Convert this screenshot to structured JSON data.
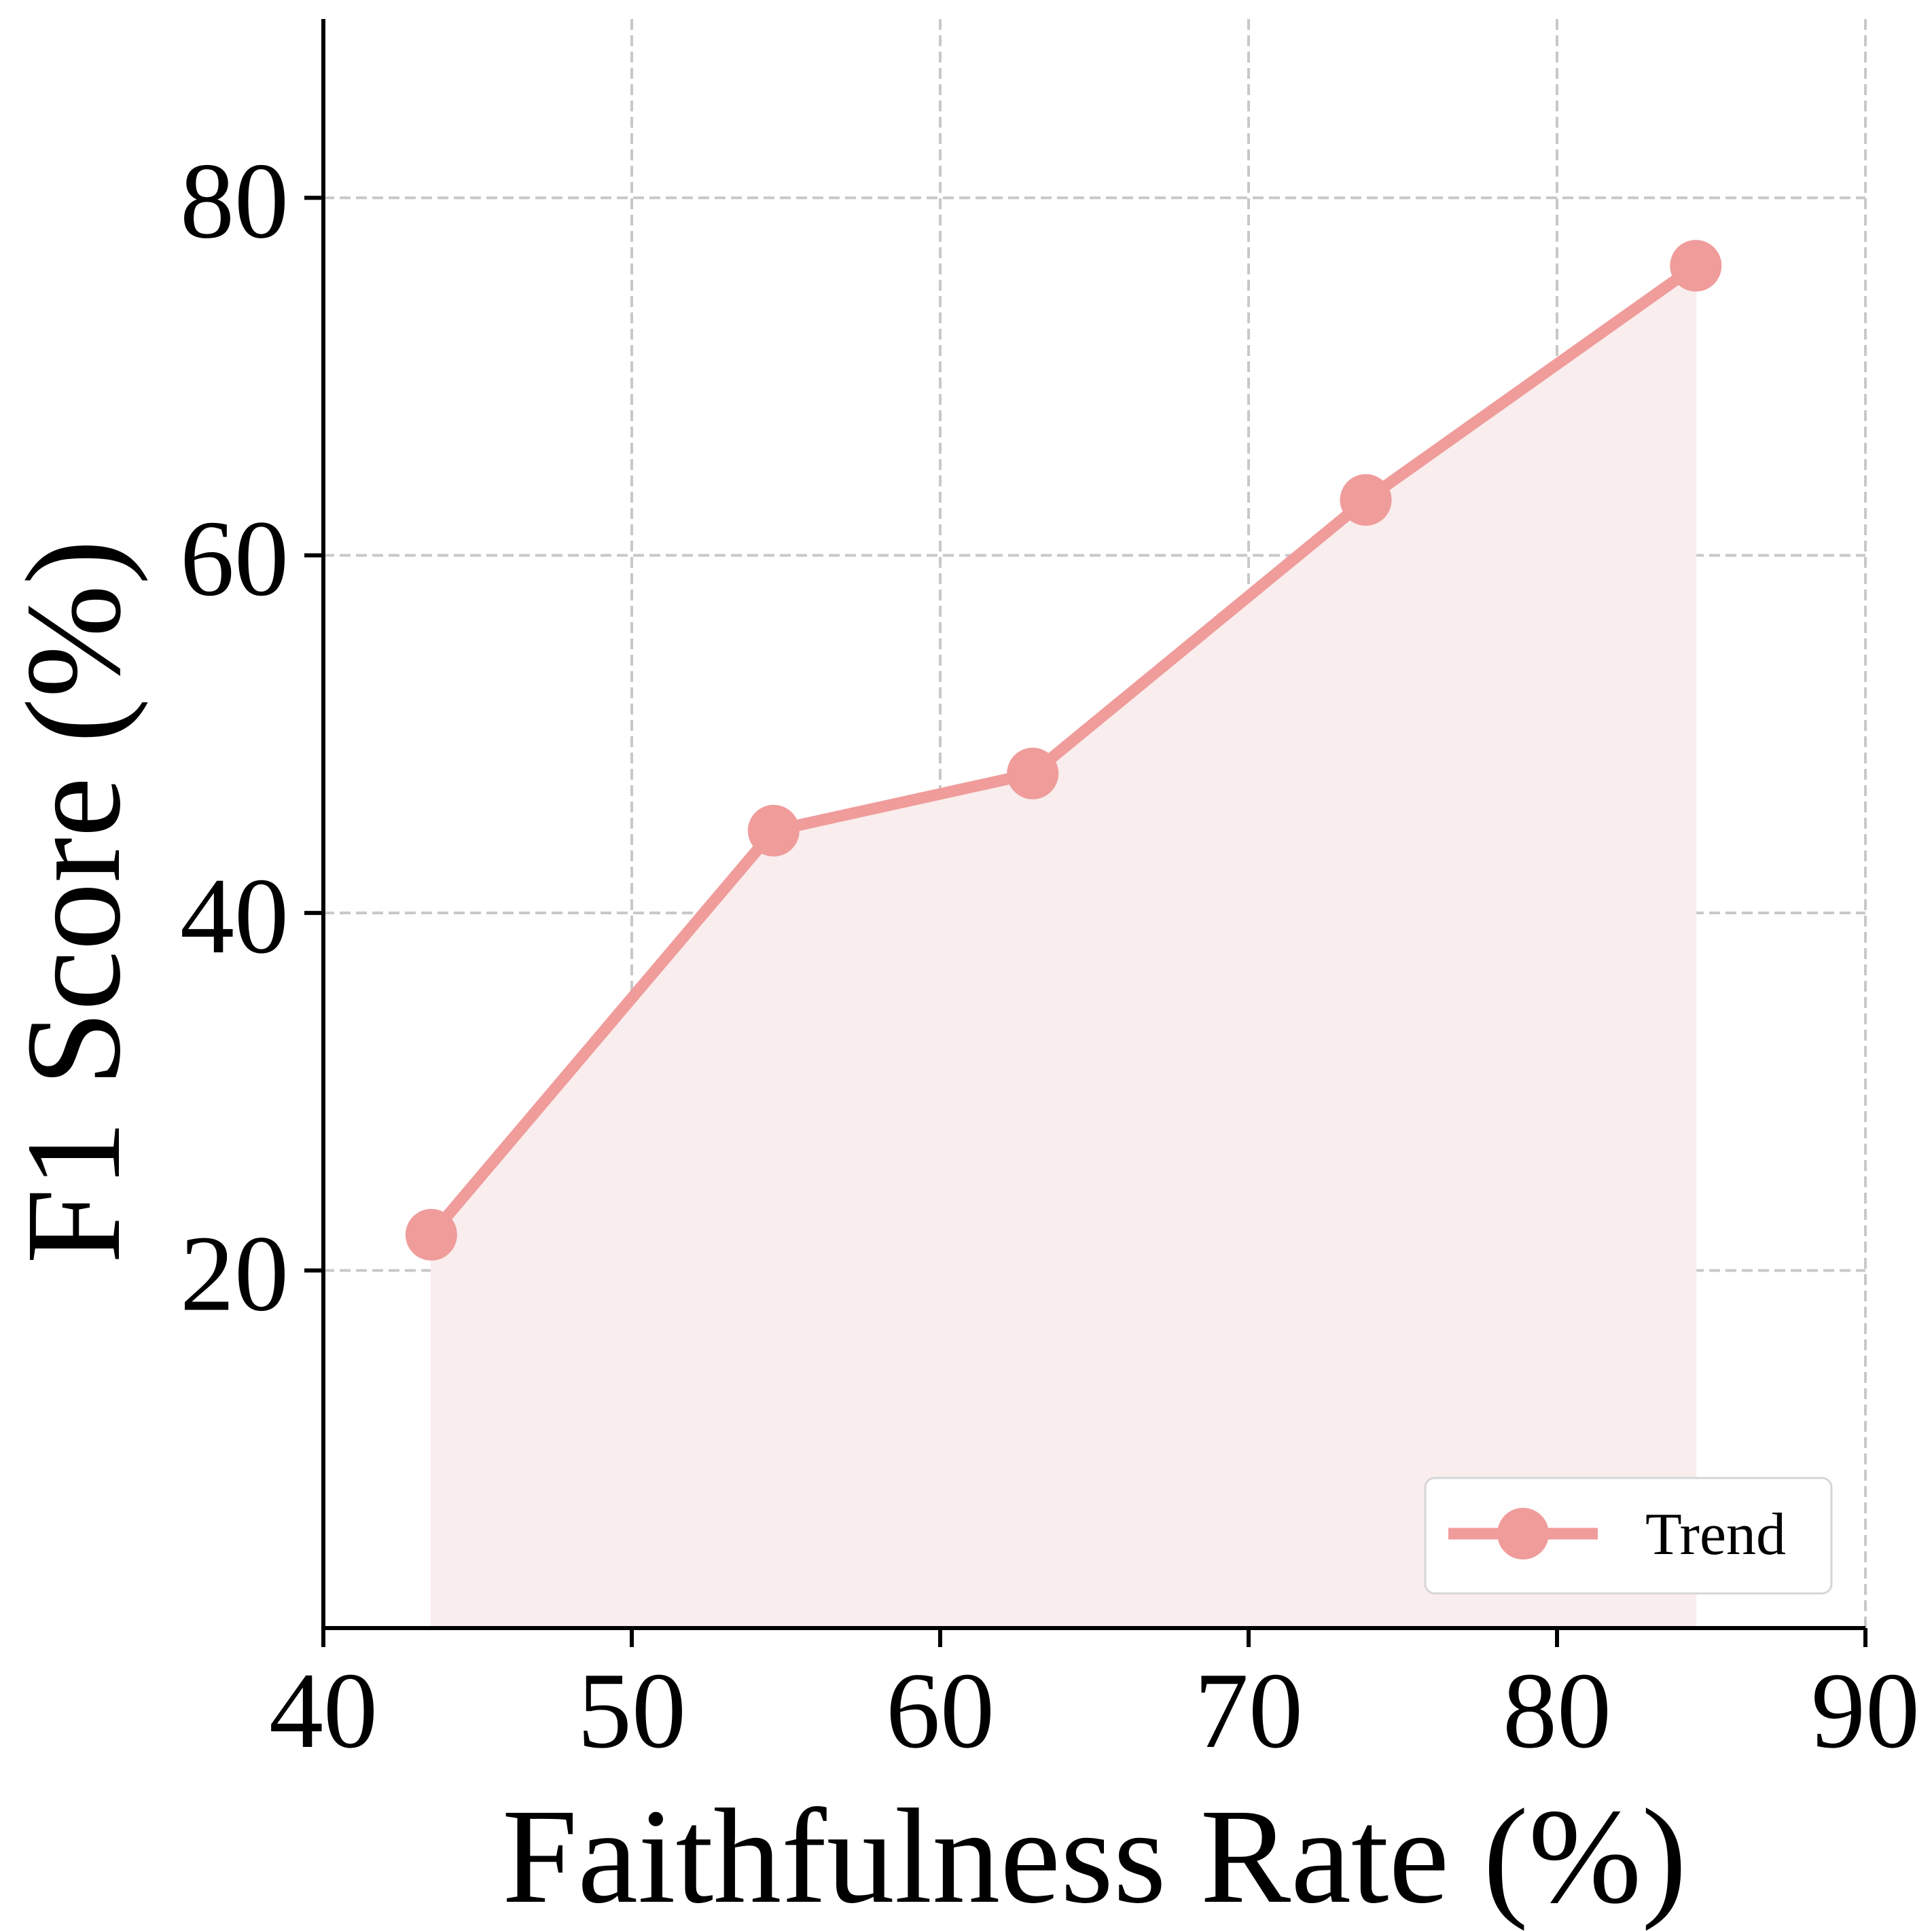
{
  "colors": {
    "series": "#ef9c9b",
    "fill": "#f9eded",
    "grid": "#c8c8c8",
    "axis": "#000000"
  },
  "chart_data": {
    "type": "line",
    "title": "",
    "xlabel": "Faithfulness Rate (%)",
    "ylabel": "F1 Score (%)",
    "xlim": [
      40,
      90
    ],
    "ylim": [
      0,
      90
    ],
    "xticks": [
      40,
      50,
      60,
      70,
      80,
      90
    ],
    "yticks": [
      20,
      40,
      60,
      80
    ],
    "grid": true,
    "legend_position": "bottom-right",
    "series": [
      {
        "name": "Trend",
        "x": [
          43.5,
          54.6,
          63.0,
          73.8,
          84.5
        ],
        "y": [
          22.0,
          44.6,
          47.8,
          63.1,
          76.2
        ],
        "fill_under": true,
        "marker": "circle"
      }
    ]
  }
}
